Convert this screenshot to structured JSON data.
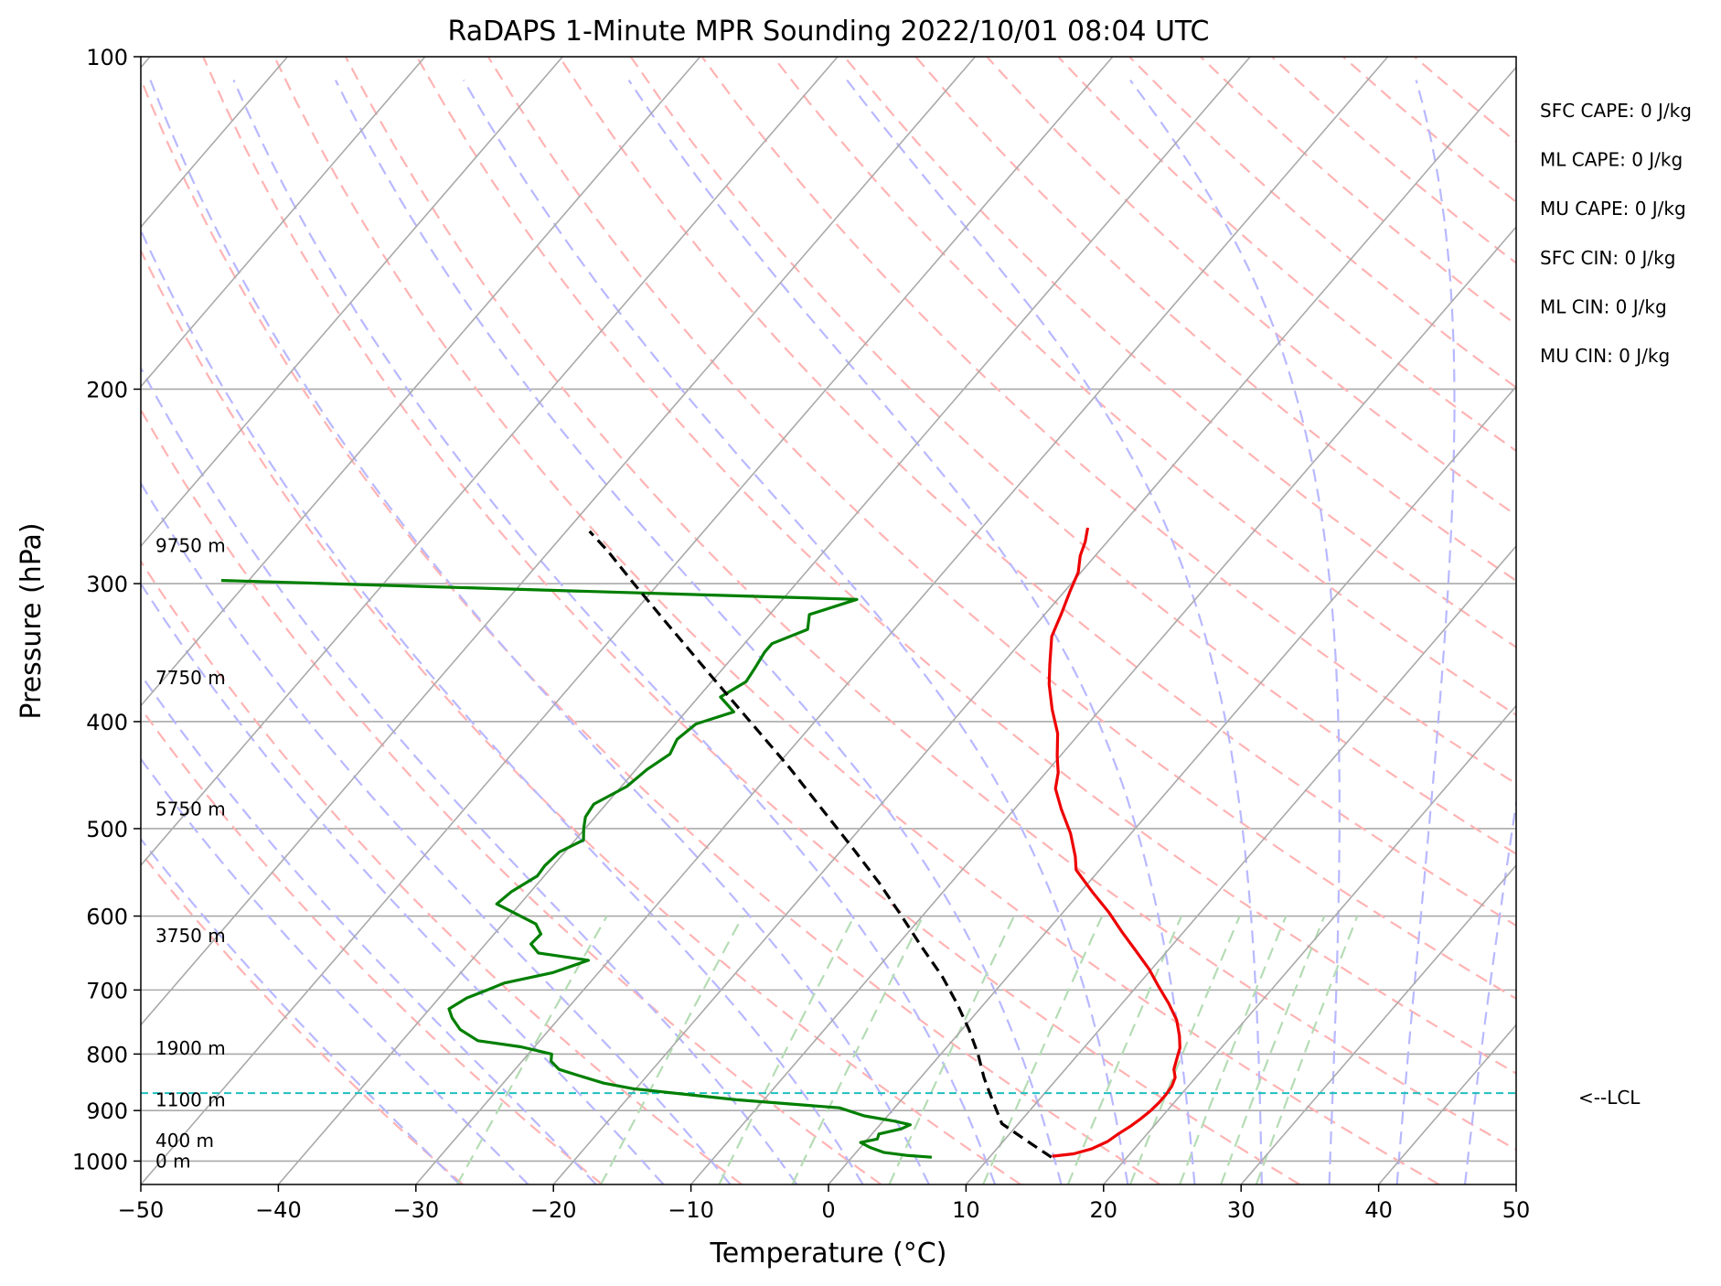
{
  "colors": {
    "temperature": "#ee0000",
    "dewpoint": "#007f00",
    "parcel": "#000000",
    "isotherm": "#aaaaaa",
    "isobar": "#aaaaaa",
    "dry_adiabat": "#ffb3b3",
    "moist_adiabat": "#b8b8ff",
    "mixing_ratio": "#b5dcb5",
    "lcl_line": "#1fbfbf"
  },
  "chart_data": {
    "type": "line",
    "title": "RaDAPS 1-Minute MPR Sounding 2022/10/01 08:04 UTC",
    "xlabel": "Temperature (°C)",
    "ylabel": "Pressure (hPa)",
    "xlim": [
      -50,
      50
    ],
    "ylim": [
      1050,
      100
    ],
    "y_scale": "log",
    "grid": true,
    "x_ticks": [
      "−50",
      "−40",
      "−30",
      "−20",
      "−10",
      "0",
      "10",
      "20",
      "30",
      "40",
      "50"
    ],
    "x_tick_values": [
      -50,
      -40,
      -30,
      -20,
      -10,
      0,
      10,
      20,
      30,
      40,
      50
    ],
    "y_ticks": [
      "100",
      "200",
      "300",
      "400",
      "500",
      "600",
      "700",
      "800",
      "900",
      "1000"
    ],
    "y_tick_values": [
      100,
      200,
      300,
      400,
      500,
      600,
      700,
      800,
      900,
      1000
    ],
    "series": [
      {
        "role": "temperature",
        "points": [
          {
            "p": 990,
            "t": 14.5
          },
          {
            "p": 985,
            "t": 15.9
          },
          {
            "p": 975,
            "t": 16.9
          },
          {
            "p": 960,
            "t": 17.6
          },
          {
            "p": 945,
            "t": 17.9
          },
          {
            "p": 930,
            "t": 18.3
          },
          {
            "p": 915,
            "t": 18.6
          },
          {
            "p": 900,
            "t": 18.8
          },
          {
            "p": 885,
            "t": 18.9
          },
          {
            "p": 870,
            "t": 18.9
          },
          {
            "p": 855,
            "t": 18.8
          },
          {
            "p": 840,
            "t": 18.5
          },
          {
            "p": 826,
            "t": 17.9
          },
          {
            "p": 810,
            "t": 17.5
          },
          {
            "p": 790,
            "t": 17.0
          },
          {
            "p": 770,
            "t": 16.2
          },
          {
            "p": 745,
            "t": 15.0
          },
          {
            "p": 720,
            "t": 13.4
          },
          {
            "p": 695,
            "t": 11.6
          },
          {
            "p": 670,
            "t": 9.8
          },
          {
            "p": 645,
            "t": 7.7
          },
          {
            "p": 620,
            "t": 5.5
          },
          {
            "p": 595,
            "t": 3.3
          },
          {
            "p": 570,
            "t": 0.8
          },
          {
            "p": 545,
            "t": -1.7
          },
          {
            "p": 530,
            "t": -2.6
          },
          {
            "p": 505,
            "t": -4.4
          },
          {
            "p": 480,
            "t": -6.6
          },
          {
            "p": 460,
            "t": -8.3
          },
          {
            "p": 445,
            "t": -9.1
          },
          {
            "p": 430,
            "t": -10.2
          },
          {
            "p": 410,
            "t": -11.6
          },
          {
            "p": 390,
            "t": -13.5
          },
          {
            "p": 370,
            "t": -15.3
          },
          {
            "p": 355,
            "t": -16.5
          },
          {
            "p": 335,
            "t": -18.1
          },
          {
            "p": 320,
            "t": -18.8
          },
          {
            "p": 305,
            "t": -19.6
          },
          {
            "p": 293,
            "t": -20.2
          },
          {
            "p": 283,
            "t": -21.1
          },
          {
            "p": 275,
            "t": -21.6
          },
          {
            "p": 267,
            "t": -22.3
          }
        ]
      },
      {
        "role": "dewpoint",
        "points": [
          {
            "p": 992,
            "t": 5.8
          },
          {
            "p": 988,
            "t": 3.8
          },
          {
            "p": 982,
            "t": 2.0
          },
          {
            "p": 972,
            "t": 0.7
          },
          {
            "p": 962,
            "t": -0.3
          },
          {
            "p": 955,
            "t": 0.7
          },
          {
            "p": 945,
            "t": 0.5
          },
          {
            "p": 935,
            "t": 1.8
          },
          {
            "p": 927,
            "t": 2.2
          },
          {
            "p": 920,
            "t": 0.8
          },
          {
            "p": 910,
            "t": -1.7
          },
          {
            "p": 895,
            "t": -4.0
          },
          {
            "p": 880,
            "t": -12.0
          },
          {
            "p": 860,
            "t": -20.2
          },
          {
            "p": 850,
            "t": -22.7
          },
          {
            "p": 836,
            "t": -25.1
          },
          {
            "p": 826,
            "t": -26.8
          },
          {
            "p": 812,
            "t": -27.9
          },
          {
            "p": 800,
            "t": -28.3
          },
          {
            "p": 788,
            "t": -31.0
          },
          {
            "p": 778,
            "t": -34.5
          },
          {
            "p": 760,
            "t": -36.5
          },
          {
            "p": 742,
            "t": -37.8
          },
          {
            "p": 728,
            "t": -38.6
          },
          {
            "p": 712,
            "t": -38.0
          },
          {
            "p": 700,
            "t": -37.0
          },
          {
            "p": 690,
            "t": -36.2
          },
          {
            "p": 675,
            "t": -33.3
          },
          {
            "p": 658,
            "t": -31.5
          },
          {
            "p": 648,
            "t": -35.6
          },
          {
            "p": 636,
            "t": -36.7
          },
          {
            "p": 623,
            "t": -36.6
          },
          {
            "p": 610,
            "t": -37.6
          },
          {
            "p": 585,
            "t": -41.7
          },
          {
            "p": 570,
            "t": -41.4
          },
          {
            "p": 552,
            "t": -40.5
          },
          {
            "p": 540,
            "t": -40.6
          },
          {
            "p": 525,
            "t": -40.4
          },
          {
            "p": 512,
            "t": -39.4
          },
          {
            "p": 500,
            "t": -40.1
          },
          {
            "p": 488,
            "t": -40.7
          },
          {
            "p": 475,
            "t": -40.9
          },
          {
            "p": 458,
            "t": -39.6
          },
          {
            "p": 442,
            "t": -39.2
          },
          {
            "p": 428,
            "t": -38.5
          },
          {
            "p": 415,
            "t": -38.9
          },
          {
            "p": 402,
            "t": -38.5
          },
          {
            "p": 392,
            "t": -36.5
          },
          {
            "p": 380,
            "t": -38.4
          },
          {
            "p": 368,
            "t": -37.5
          },
          {
            "p": 358,
            "t": -37.7
          },
          {
            "p": 346,
            "t": -38.0
          },
          {
            "p": 340,
            "t": -38.0
          },
          {
            "p": 330,
            "t": -36.3
          },
          {
            "p": 320,
            "t": -37.1
          },
          {
            "p": 310,
            "t": -34.6
          },
          {
            "p": 302,
            "t": -66.0
          },
          {
            "p": 298,
            "t": -82.0
          }
        ]
      },
      {
        "role": "parcel",
        "points": [
          {
            "p": 992,
            "t": 14.5
          },
          {
            "p": 960,
            "t": 11.8
          },
          {
            "p": 925,
            "t": 8.8
          },
          {
            "p": 868,
            "t": 6.0
          },
          {
            "p": 840,
            "t": 4.6
          },
          {
            "p": 800,
            "t": 2.7
          },
          {
            "p": 760,
            "t": 0.5
          },
          {
            "p": 720,
            "t": -2.0
          },
          {
            "p": 680,
            "t": -4.8
          },
          {
            "p": 640,
            "t": -8.1
          },
          {
            "p": 600,
            "t": -11.5
          },
          {
            "p": 560,
            "t": -15.2
          },
          {
            "p": 520,
            "t": -19.4
          },
          {
            "p": 480,
            "t": -24.0
          },
          {
            "p": 440,
            "t": -29.0
          },
          {
            "p": 400,
            "t": -34.7
          },
          {
            "p": 360,
            "t": -41.0
          },
          {
            "p": 320,
            "t": -48.0
          },
          {
            "p": 300,
            "t": -51.8
          },
          {
            "p": 280,
            "t": -55.8
          },
          {
            "p": 269,
            "t": -58.3
          }
        ]
      }
    ],
    "lcl": {
      "p": 868,
      "label": "<--LCL"
    },
    "height_labels": [
      {
        "p": 277,
        "text": "9750 m"
      },
      {
        "p": 365,
        "text": "7750 m"
      },
      {
        "p": 480,
        "text": "5750 m"
      },
      {
        "p": 625,
        "text": "3750 m"
      },
      {
        "p": 790,
        "text": "1900 m"
      },
      {
        "p": 880,
        "text": "1100 m"
      },
      {
        "p": 958,
        "text": "400 m"
      },
      {
        "p": 1000,
        "text": "0 m"
      }
    ],
    "stats": [
      {
        "name": "SFC CAPE",
        "text": "SFC CAPE: 0 J/kg"
      },
      {
        "name": "ML CAPE",
        "text": "ML CAPE: 0 J/kg"
      },
      {
        "name": "MU CAPE",
        "text": "MU CAPE: 0 J/kg"
      },
      {
        "name": "SFC CIN",
        "text": "SFC CIN: 0 J/kg"
      },
      {
        "name": "ML CIN",
        "text": "ML CIN: 0 J/kg"
      },
      {
        "name": "MU CIN",
        "text": "MU CIN: 0 J/kg"
      }
    ]
  }
}
